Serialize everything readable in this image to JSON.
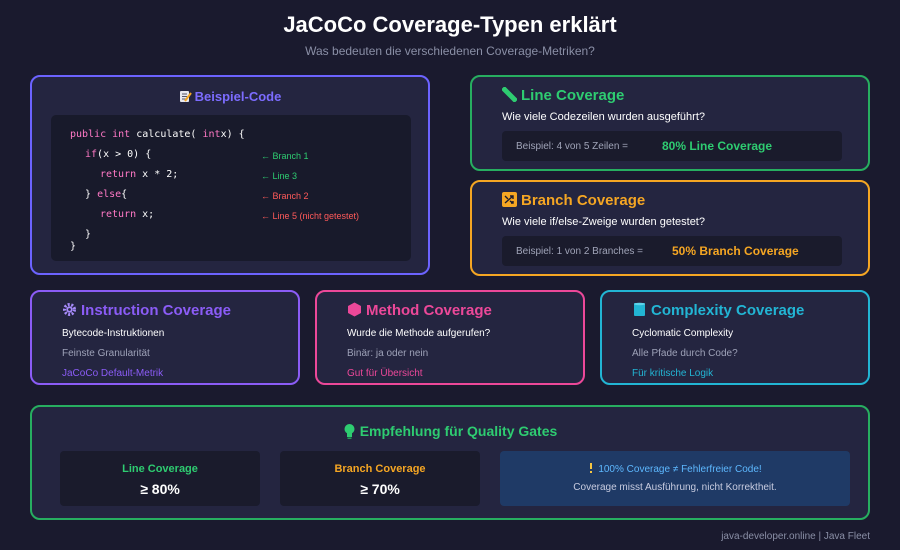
{
  "header": {
    "title": "JaCoCo Coverage-Typen erklärt",
    "subtitle": "Was bedeuten die verschiedenen Coverage-Metriken?"
  },
  "code": {
    "heading": "Beispiel-Code",
    "icon": "memo-icon",
    "lines": {
      "l1_kw": "public int",
      "l1_a": "calculate(",
      "l1_kw2": "int",
      "l1_b": "x) {",
      "l2_kw": "if",
      "l2_a": "(x > 0) {",
      "l3_kw": "return",
      "l3_a": "x * 2;",
      "l4_a": "}",
      "l4_kw": "else",
      "l4_b": "{",
      "l5_kw": "return",
      "l5_a": "x;",
      "l6": "}",
      "l7": "}"
    },
    "comments": {
      "c1": "← Branch 1",
      "c2": "← Line 3",
      "c3": "← Branch 2",
      "c4": "← Line 5 (nicht getestet)"
    }
  },
  "line_coverage": {
    "title": "Line Coverage",
    "icon": "ruler-icon",
    "question": "Wie viele Codezeilen wurden ausgeführt?",
    "example": "Beispiel: 4 von 5 Zeilen =",
    "result": "80% Line Coverage"
  },
  "branch_coverage": {
    "title": "Branch Coverage",
    "icon": "shuffle-icon",
    "question": "Wie viele if/else-Zweige wurden getestet?",
    "example": "Beispiel: 1 von 2 Branches =",
    "result": "50% Branch Coverage"
  },
  "instruction_coverage": {
    "title": "Instruction Coverage",
    "icon": "gear-icon",
    "l1": "Bytecode-Instruktionen",
    "l2": "Feinste Granularität",
    "l3": "JaCoCo Default-Metrik"
  },
  "method_coverage": {
    "title": "Method Coverage",
    "icon": "hexagon-icon",
    "l1": "Wurde die Methode aufgerufen?",
    "l2": "Binär: ja oder nein",
    "l3": "Gut für Übersicht"
  },
  "complexity_coverage": {
    "title": "Complexity Coverage",
    "icon": "cylinder-icon",
    "l1": "Cyclomatic Complexity",
    "l2": "Alle Pfade durch Code?",
    "l3": "Für kritische Logik"
  },
  "recommendation": {
    "title": "Empfehlung für Quality Gates",
    "icon": "lightbulb-icon",
    "line_label": "Line Coverage",
    "line_value": "≥ 80%",
    "branch_label": "Branch Coverage",
    "branch_value": "≥ 70%",
    "note_icon": "exclamation-icon",
    "note1": "100% Coverage ≠ Fehlerfreier Code!",
    "note2": "Coverage misst Ausführung, nicht Korrektheit."
  },
  "footer": "java-developer.online | Java Fleet",
  "colors": {
    "line": "#2ecc71",
    "branch": "#f5a623",
    "instruction": "#8b5cf6",
    "method": "#ec4899",
    "complexity": "#22b5d4",
    "code": "#6c63ff"
  }
}
